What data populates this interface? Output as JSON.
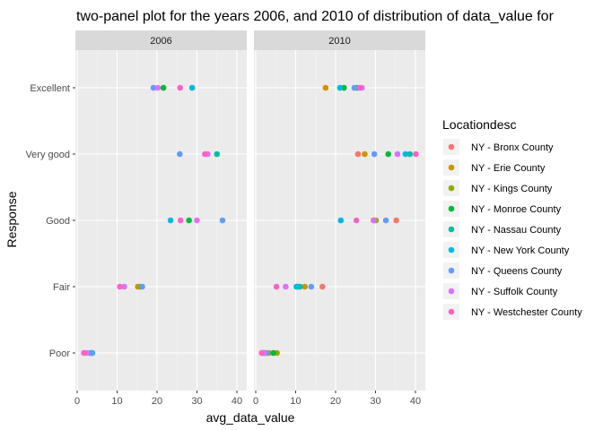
{
  "chart_data": {
    "type": "scatter",
    "title": "two-panel plot for the years 2006, and 2010 of distribution of data_value for",
    "xlabel": "avg_data_value",
    "ylabel": "Response",
    "xlim": [
      0,
      40
    ],
    "x_ticks": [
      0,
      10,
      20,
      30,
      40
    ],
    "categories": [
      "Poor",
      "Fair",
      "Good",
      "Very good",
      "Excellent"
    ],
    "grid": true,
    "legend_position": "right",
    "legend_title": "Locationdesc",
    "panels": [
      "2006",
      "2010"
    ],
    "series": [
      {
        "name": "NY - Bronx County",
        "color": "#F8766D",
        "points": {
          "2006": {
            "Excellent": null,
            "Very good": null,
            "Good": null,
            "Fair": null,
            "Poor": null
          },
          "2010": {
            "Excellent": null,
            "Very good": 25.6,
            "Good": 35.2,
            "Fair": 16.7,
            "Poor": 1.8
          }
        }
      },
      {
        "name": "NY - Erie County",
        "color": "#D39200",
        "points": {
          "2006": {
            "Excellent": null,
            "Very good": null,
            "Good": null,
            "Fair": 15.2,
            "Poor": null
          },
          "2010": {
            "Excellent": 17.5,
            "Very good": 27.3,
            "Good": 29.5,
            "Fair": 12.3,
            "Poor": 3.3
          }
        }
      },
      {
        "name": "NY - Kings County",
        "color": "#93AA00",
        "points": {
          "2006": {
            "Excellent": null,
            "Very good": null,
            "Good": null,
            "Fair": 15.8,
            "Poor": null
          },
          "2010": {
            "Excellent": null,
            "Very good": null,
            "Good": 30.1,
            "Fair": null,
            "Poor": 5.3
          }
        }
      },
      {
        "name": "NY - Monroe County",
        "color": "#00BA38",
        "points": {
          "2006": {
            "Excellent": 21.6,
            "Very good": null,
            "Good": 28.0,
            "Fair": null,
            "Poor": null
          },
          "2010": {
            "Excellent": 22.1,
            "Very good": 33.2,
            "Good": null,
            "Fair": 10.5,
            "Poor": 4.4
          }
        }
      },
      {
        "name": "NY - Nassau County",
        "color": "#00C19F",
        "points": {
          "2006": {
            "Excellent": null,
            "Very good": 35.0,
            "Good": null,
            "Fair": null,
            "Poor": 3.3
          },
          "2010": {
            "Excellent": 25.3,
            "Very good": 38.6,
            "Good": null,
            "Fair": 11.1,
            "Poor": 2.1
          }
        }
      },
      {
        "name": "NY - New York County",
        "color": "#00B9E3",
        "points": {
          "2006": {
            "Excellent": 28.8,
            "Very good": null,
            "Good": 23.4,
            "Fair": null,
            "Poor": 3.8
          },
          "2010": {
            "Excellent": 21.1,
            "Very good": 37.5,
            "Good": 21.3,
            "Fair": 10.2,
            "Poor": 2.4
          }
        }
      },
      {
        "name": "NY - Queens County",
        "color": "#619CFF",
        "points": {
          "2006": {
            "Excellent": 19.1,
            "Very good": 25.7,
            "Good": 36.4,
            "Fair": 16.3,
            "Poor": 3.6
          },
          "2010": {
            "Excellent": 24.7,
            "Very good": 29.7,
            "Good": 32.6,
            "Fair": 13.9,
            "Poor": 2.7
          }
        }
      },
      {
        "name": "NY - Suffolk County",
        "color": "#DB72FB",
        "points": {
          "2006": {
            "Excellent": 20.2,
            "Very good": 32.7,
            "Good": 30.0,
            "Fair": 11.8,
            "Poor": 2.4
          },
          "2010": {
            "Excellent": 26.6,
            "Very good": 35.5,
            "Good": 29.6,
            "Fair": 7.5,
            "Poor": 2.0
          }
        }
      },
      {
        "name": "NY - Westchester County",
        "color": "#FF61C3",
        "points": {
          "2006": {
            "Excellent": 25.8,
            "Very good": 32.0,
            "Good": 25.9,
            "Fair": 10.7,
            "Poor": 1.7
          },
          "2010": {
            "Excellent": 26.0,
            "Very good": 40.1,
            "Good": 25.2,
            "Fair": 5.2,
            "Poor": 1.5
          }
        }
      }
    ]
  }
}
